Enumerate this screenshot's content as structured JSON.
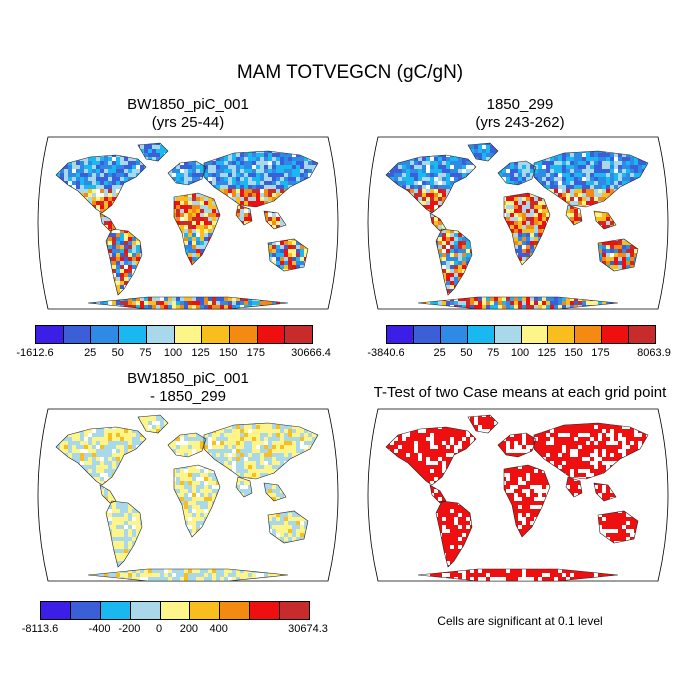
{
  "title": "MAM TOTVEGCN (gC/gN)",
  "panels": {
    "case1": {
      "title_line1": "BW1850_piC_001",
      "title_line2": "(yrs 25-44)"
    },
    "case2": {
      "title_line1": "1850_299",
      "title_line2": "(yrs 243-262)"
    },
    "diff": {
      "title_line1": "BW1850_piC_001",
      "title_line2": "- 1850_299"
    },
    "ttest": {
      "title_line1": "T-Test of two Case means at each grid point",
      "note": "Cells are significant at 0.1 level"
    }
  },
  "colorbars": {
    "case1": {
      "colors": [
        "#3b1fe6",
        "#3a5fd8",
        "#2f8ae6",
        "#1ab8f0",
        "#a8d8ea",
        "#fdf58a",
        "#f7be1e",
        "#f38b12",
        "#ee1010",
        "#c82b2b"
      ],
      "labels": [
        "-1612.6",
        "25",
        "50",
        "75",
        "100",
        "125",
        "150",
        "175",
        "30666.4"
      ]
    },
    "case2": {
      "colors": [
        "#3b1fe6",
        "#3a5fd8",
        "#2f8ae6",
        "#1ab8f0",
        "#a8d8ea",
        "#fdf58a",
        "#f7be1e",
        "#f38b12",
        "#ee1010",
        "#c82b2b"
      ],
      "labels": [
        "-3840.6",
        "25",
        "50",
        "75",
        "100",
        "125",
        "150",
        "175",
        "8063.9"
      ]
    },
    "diff": {
      "colors": [
        "#3b1fe6",
        "#3a5fd8",
        "#1ab8f0",
        "#a8d8ea",
        "#fdf58a",
        "#f7be1e",
        "#f38b12",
        "#ee1010",
        "#c82b2b"
      ],
      "labels": [
        "-8113.6",
        "-400",
        "-200",
        "0",
        "200",
        "400",
        "30674.3"
      ]
    }
  }
}
